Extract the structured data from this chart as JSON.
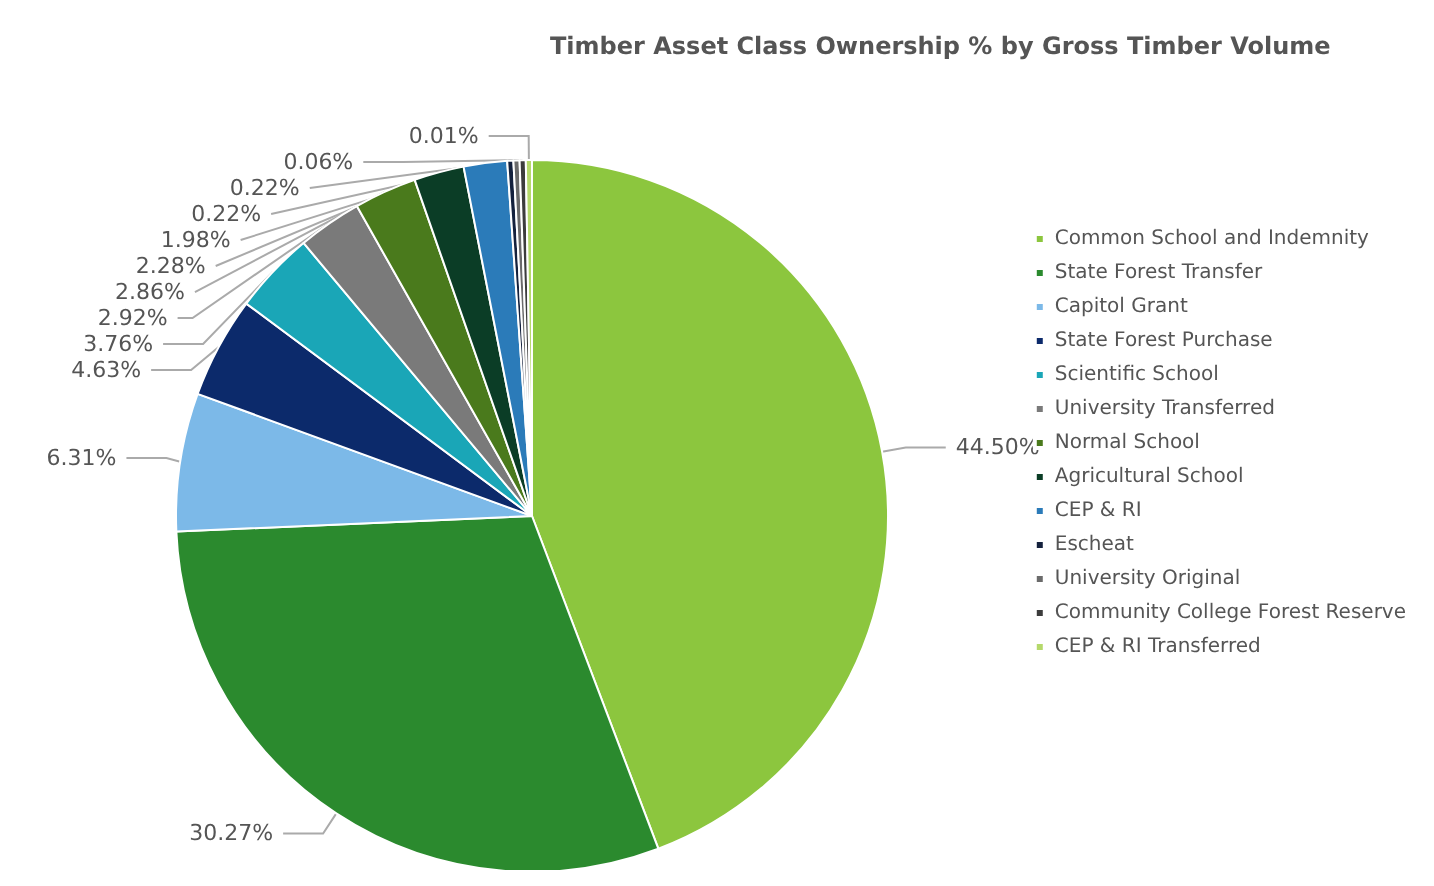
{
  "chart_data": {
    "type": "pie",
    "title": "Timber Asset Class Ownership % by Gross Timber Volume",
    "categories": [
      "Common School and Indemnity",
      "State Forest Transfer",
      "Capitol Grant",
      "State Forest Purchase",
      "Scientific School",
      "University Transferred",
      "Normal School",
      "Agricultural School",
      "CEP & RI",
      "Escheat",
      "University Original",
      "Community College Forest Reserve",
      "CEP & RI Transferred"
    ],
    "values": [
      44.5,
      30.27,
      6.31,
      4.63,
      3.76,
      2.92,
      2.86,
      2.28,
      1.98,
      0.22,
      0.22,
      0.06,
      0.01
    ],
    "value_labels": [
      "44.50%",
      "30.27%",
      "6.31%",
      "4.63%",
      "3.76%",
      "2.92%",
      "2.86%",
      "2.28%",
      "1.98%",
      "0.22%",
      "0.22%",
      "0.06%",
      "0.01%"
    ],
    "colors": [
      "#8cc63e",
      "#2b8a2e",
      "#7cb9e8",
      "#0c2a6b",
      "#1aa6b7",
      "#7a7a7a",
      "#4a7a1c",
      "#0b3d26",
      "#2b7bb9",
      "#14213d",
      "#6b6b6b",
      "#3c3c3c",
      "#b5d96b"
    ],
    "legend": "right"
  }
}
